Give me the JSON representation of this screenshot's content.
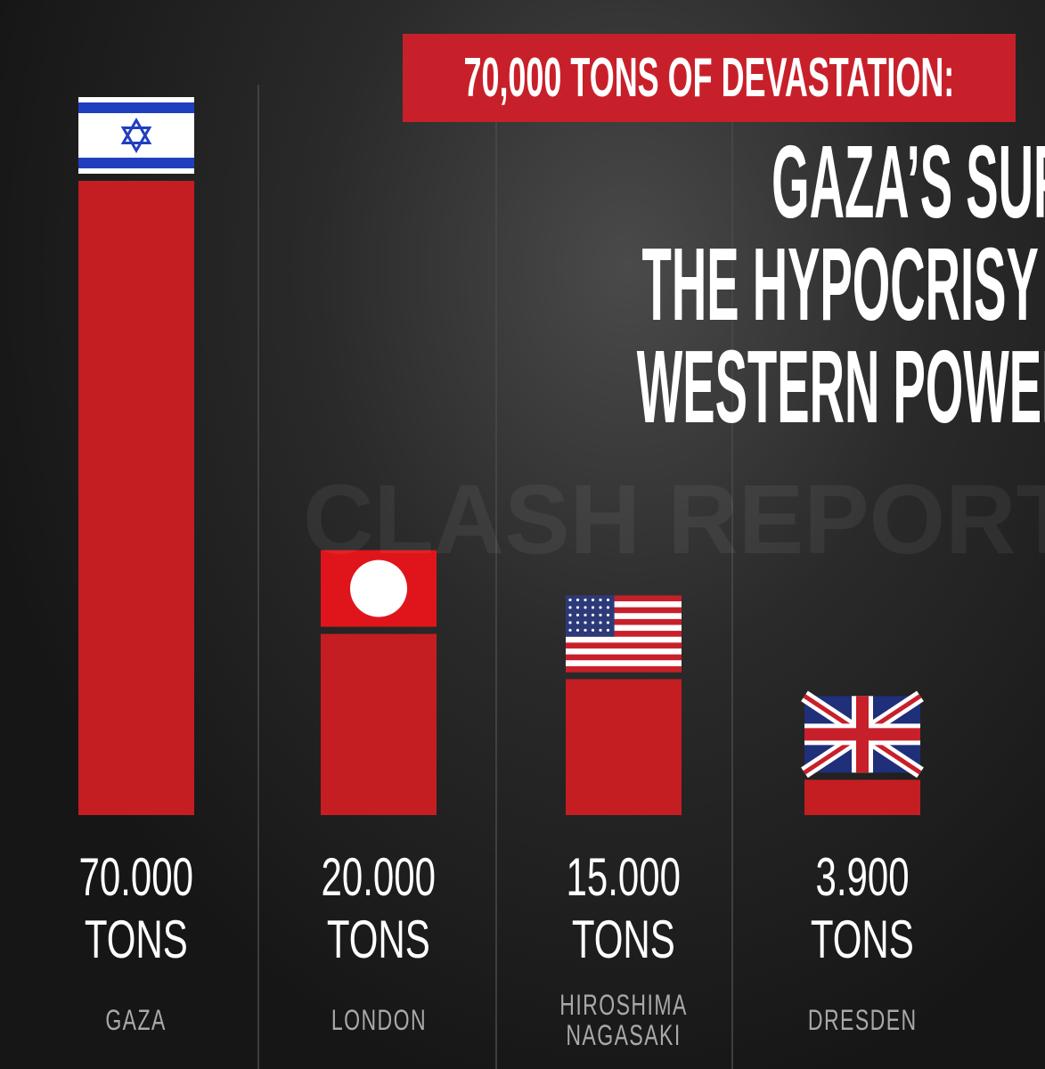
{
  "chart_data": {
    "type": "bar",
    "title": "70,000 TONS OF DEVASTATION:",
    "subtitle": [
      "GAZA’S SUFFERING AND",
      "THE HYPOCRISY OF",
      "WESTERN POWERS"
    ],
    "watermark": "CLASH REPORT",
    "categories": [
      "GAZA",
      "LONDON",
      "HIROSHIMA NAGASAKI",
      "DRESDEN"
    ],
    "values": [
      70000,
      20000,
      15000,
      3900
    ],
    "value_labels": [
      "70.000",
      "20.000",
      "15.000",
      "3.900"
    ],
    "unit": "TONS",
    "ylim": [
      0,
      70000
    ],
    "color": "#c41e22"
  }
}
